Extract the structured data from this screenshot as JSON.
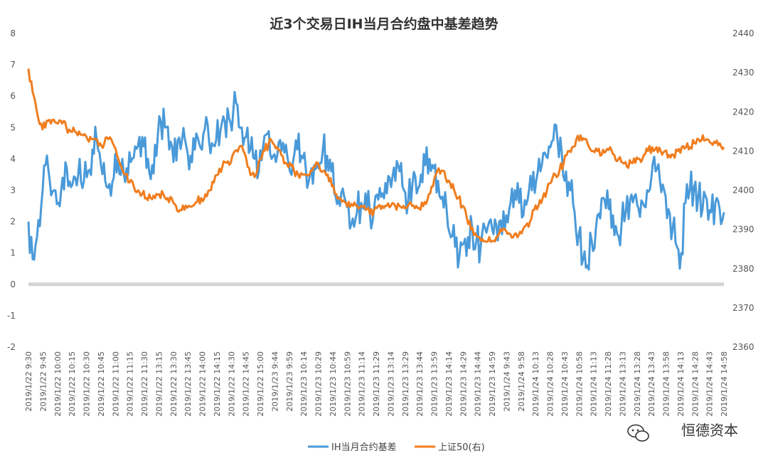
{
  "chart_data": {
    "type": "line",
    "title": "近3个交易日IH当月合约盘中基差趋势",
    "y_left_ticks": [
      "8",
      "7",
      "6",
      "5",
      "4",
      "3",
      "2",
      "1",
      "0",
      "-1",
      "-2"
    ],
    "y_right_ticks": [
      "2440",
      "2430",
      "2420",
      "2410",
      "2400",
      "2390",
      "2380",
      "2370",
      "2360"
    ],
    "ylim_left": [
      -2,
      8
    ],
    "ylim_right": [
      2360,
      2440
    ],
    "x_tick_labels": [
      "2019/1/22 9:30",
      "2019/1/22 9:45",
      "2019/1/22 10:00",
      "2019/1/22 10:15",
      "2019/1/22 10:30",
      "2019/1/22 10:45",
      "2019/1/22 11:00",
      "2019/1/22 11:15",
      "2019/1/22 11:30",
      "2019/1/22 13:15",
      "2019/1/22 13:30",
      "2019/1/22 13:45",
      "2019/1/22 14:00",
      "2019/1/22 14:15",
      "2019/1/22 14:30",
      "2019/1/22 14:45",
      "2019/1/22 15:00",
      "2019/1/23 9:44",
      "2019/1/23 9:59",
      "2019/1/23 10:14",
      "2019/1/23 10:29",
      "2019/1/23 10:44",
      "2019/1/23 10:59",
      "2019/1/23 11:14",
      "2019/1/23 11:29",
      "2019/1/23 13:14",
      "2019/1/23 13:29",
      "2019/1/23 13:44",
      "2019/1/23 13:59",
      "2019/1/23 14:14",
      "2019/1/23 14:29",
      "2019/1/23 14:44",
      "2019/1/23 14:59",
      "2019/1/24 9:43",
      "2019/1/24 9:58",
      "2019/1/24 10:13",
      "2019/1/24 10:28",
      "2019/1/24 10:43",
      "2019/1/24 10:58",
      "2019/1/24 11:13",
      "2019/1/24 11:28",
      "2019/1/24 13:13",
      "2019/1/24 13:28",
      "2019/1/24 13:43",
      "2019/1/24 13:58",
      "2019/1/24 14:13",
      "2019/1/24 14:28",
      "2019/1/24 14:43",
      "2019/1/24 14:58"
    ],
    "series": [
      {
        "name": "IH当月合约基差",
        "axis": "left",
        "color": "#4a9ad9",
        "values": [
          2.0,
          0.8,
          1.5,
          2.5,
          3.8,
          3.3,
          3.0,
          2.6,
          3.4,
          3.7,
          3.1,
          3.4,
          4.0,
          3.3,
          3.6,
          4.3,
          4.6,
          3.8,
          3.3,
          3.2,
          3.4,
          4.0,
          4.0,
          3.7,
          3.9,
          4.4,
          4.7,
          4.4,
          4.0,
          3.8,
          4.1,
          5.2,
          5.0,
          4.3,
          3.9,
          4.6,
          4.6,
          4.4,
          4.1,
          4.3,
          4.5,
          4.8,
          5.1,
          4.5,
          4.6,
          4.9,
          5.2,
          5.3,
          5.5,
          5.7,
          5.0,
          4.7,
          4.3,
          4.0,
          3.6,
          4.4,
          4.8,
          4.0,
          3.9,
          4.6,
          4.2,
          3.8,
          3.9,
          4.3,
          4.1,
          3.7,
          3.5,
          3.8,
          3.7,
          4.3,
          4.1,
          3.6,
          2.8,
          2.5,
          2.8,
          2.5,
          2.1,
          2.3,
          2.6,
          2.9,
          2.3,
          2.4,
          2.7,
          2.9,
          2.9,
          3.1,
          3.3,
          3.6,
          3.0,
          2.6,
          3.2,
          2.9,
          3.5,
          3.8,
          4.0,
          3.7,
          3.3,
          2.8,
          2.4,
          1.5,
          1.2,
          0.9,
          1.3,
          1.5,
          1.8,
          1.4,
          1.2,
          1.8,
          2.0,
          1.6,
          1.4,
          1.6,
          2.2,
          2.6,
          3.0,
          2.6,
          2.2,
          2.7,
          3.0,
          3.3,
          3.6,
          4.2,
          4.4,
          4.6,
          4.6,
          4.2,
          3.6,
          3.0,
          2.3,
          1.6,
          0.8,
          0.6,
          1.4,
          1.8,
          2.1,
          2.7,
          2.4,
          2.2,
          1.6,
          1.9,
          2.3,
          2.7,
          2.8,
          2.4,
          2.6,
          3.0,
          3.4,
          3.6,
          3.3,
          3.0,
          2.4,
          1.8,
          1.2,
          1.0,
          2.6,
          3.0,
          3.1,
          2.8,
          2.4,
          2.7,
          2.3,
          2.6,
          2.4,
          2.3
        ],
        "line_width": 3,
        "jitter": 0.6
      },
      {
        "name": "上证50(右)",
        "axis": "right",
        "color": "#f07d1e",
        "values": [
          2431,
          2425,
          2420,
          2417,
          2416,
          2418,
          2418,
          2417,
          2417,
          2416,
          2415,
          2415,
          2415,
          2414,
          2413,
          2413,
          2413,
          2412,
          2412,
          2413,
          2412,
          2409,
          2406,
          2404,
          2402,
          2401,
          2400,
          2399,
          2398,
          2398,
          2398,
          2399,
          2399,
          2398,
          2398,
          2396,
          2395,
          2395,
          2396,
          2396,
          2397,
          2398,
          2399,
          2400,
          2402,
          2404,
          2406,
          2407,
          2407,
          2410,
          2411,
          2410,
          2406,
          2404,
          2404,
          2408,
          2410,
          2412,
          2412,
          2411,
          2409,
          2407,
          2407,
          2405,
          2404,
          2404,
          2404,
          2405,
          2406,
          2406,
          2405,
          2404,
          2401,
          2399,
          2398,
          2397,
          2397,
          2396,
          2396,
          2396,
          2395,
          2394,
          2395,
          2396,
          2396,
          2396,
          2396,
          2396,
          2396,
          2396,
          2396,
          2396,
          2396,
          2395,
          2397,
          2399,
          2401,
          2405,
          2405,
          2403,
          2402,
          2400,
          2398,
          2396,
          2393,
          2390,
          2389,
          2388,
          2387,
          2387,
          2387,
          2388,
          2390,
          2390,
          2389,
          2388,
          2388,
          2389,
          2391,
          2392,
          2395,
          2396,
          2398,
          2400,
          2402,
          2404,
          2405,
          2407,
          2410,
          2411,
          2413,
          2414,
          2413,
          2411,
          2410,
          2410,
          2409,
          2410,
          2411,
          2409,
          2408,
          2407,
          2406,
          2407,
          2407,
          2408,
          2409,
          2410,
          2411,
          2411,
          2410,
          2410,
          2409,
          2409,
          2410,
          2411,
          2411,
          2411,
          2412,
          2413,
          2414,
          2413,
          2412,
          2412,
          2412,
          2411
        ],
        "line_width": 3,
        "jitter": 0.8
      }
    ],
    "zero_line": true,
    "grid": false,
    "legend_position": "bottom"
  },
  "watermark": {
    "text": "恒德资本",
    "icon": "wechat-icon"
  }
}
